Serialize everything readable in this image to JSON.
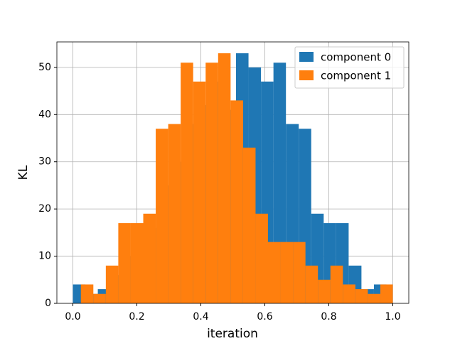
{
  "chart_data": {
    "type": "histogram",
    "xlabel": "iteration",
    "ylabel": "KL",
    "series": [
      {
        "name": "component 0",
        "color": "#1f77b4",
        "bins": [
          0,
          0.039,
          0.078,
          0.118,
          0.157,
          0.196,
          0.235,
          0.274,
          0.314,
          0.353,
          0.392,
          0.431,
          0.47,
          0.51,
          0.549,
          0.588,
          0.627,
          0.666,
          0.706,
          0.745,
          0.784,
          0.823,
          0.862,
          0.902,
          0.941,
          0.98
        ],
        "values": [
          4,
          2,
          3,
          6,
          10,
          14,
          16,
          25,
          30,
          38,
          42,
          47,
          41,
          53,
          50,
          47,
          51,
          38,
          37,
          19,
          17,
          17,
          8,
          3,
          4
        ]
      },
      {
        "name": "component 1",
        "color": "#ff7f0e",
        "bins": [
          0.025,
          0.064,
          0.103,
          0.142,
          0.181,
          0.22,
          0.259,
          0.298,
          0.337,
          0.376,
          0.415,
          0.454,
          0.493,
          0.532,
          0.571,
          0.61,
          0.649,
          0.688,
          0.727,
          0.766,
          0.805,
          0.844,
          0.883,
          0.922,
          0.961,
          1.0
        ],
        "values": [
          4,
          2,
          8,
          17,
          17,
          19,
          37,
          38,
          51,
          47,
          51,
          53,
          43,
          33,
          19,
          13,
          13,
          13,
          8,
          5,
          8,
          4,
          3,
          2,
          4
        ]
      }
    ],
    "xlim": [
      -0.05,
      1.05
    ],
    "xticks": [
      {
        "value": 0,
        "label": "0.0"
      },
      0.2,
      0.4,
      0.6,
      0.8,
      {
        "value": 1,
        "label": "1.0"
      }
    ],
    "ylim": [
      0,
      55.4
    ],
    "yticks": [
      0,
      10,
      20,
      30,
      40,
      50
    ],
    "grid": true,
    "legend": "upper right"
  }
}
